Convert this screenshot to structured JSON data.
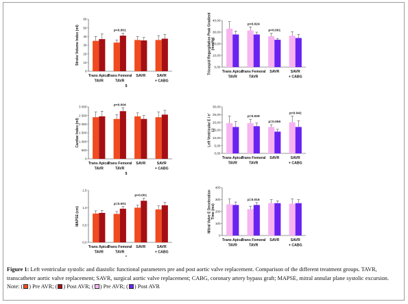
{
  "colors": {
    "pre_systolic": "#f04b1e",
    "post_systolic": "#a50f14",
    "pre_diastolic": "#f7b4f0",
    "post_diastolic": "#6a22f0"
  },
  "chart_data": [
    {
      "type": "bar",
      "id": "stroke-volume",
      "ylabel": "Stroke Volume Index (ml)",
      "ylim": [
        0,
        60
      ],
      "yticks": [
        "0",
        "10",
        "20",
        "30",
        "40",
        "50",
        "60"
      ],
      "categories": [
        "Trans Apical TAVR",
        "Trans Femoral TAVR",
        "SAVR",
        "SAVR + CABG"
      ],
      "series": [
        {
          "values": [
            35,
            33,
            36,
            36
          ],
          "errors": [
            5,
            3,
            4,
            5
          ]
        },
        {
          "values": [
            37,
            41,
            35.5,
            37.5
          ],
          "errors": [
            6,
            3,
            3.5,
            5
          ]
        }
      ],
      "annotations": [
        {
          "category": 1,
          "text": "p<0.001"
        }
      ],
      "marker": "$"
    },
    {
      "type": "bar",
      "id": "tricuspid-gradient",
      "ylabel": "Tricuspid Regurgitation Peak Gradient (mmHg)",
      "ylim": [
        0,
        40
      ],
      "yticks": [
        "0,00",
        "10,00",
        "20,00",
        "30,00",
        "40,00"
      ],
      "categories": [
        "Trans Apical TAVR",
        "Trans Femoral TAVR",
        "SAVR",
        "SAVR + CABG"
      ],
      "series": [
        {
          "values": [
            33,
            31.5,
            26.5,
            27
          ],
          "errors": [
            6,
            3,
            2.5,
            3.5
          ]
        },
        {
          "values": [
            28,
            28,
            23.5,
            25
          ],
          "errors": [
            3,
            2,
            1,
            3
          ]
        }
      ],
      "annotations": [
        {
          "category": 1,
          "text": "p=0.024"
        },
        {
          "category": 2,
          "text": "p=0.001"
        }
      ],
      "marker": ""
    },
    {
      "type": "bar",
      "id": "cardiac-index",
      "ylabel": "Cardiac Index (ml)",
      "ylim": [
        0,
        3000
      ],
      "yticks": [
        "0",
        "500",
        "1 000",
        "1 500",
        "2 000",
        "2 500",
        "3 000"
      ],
      "categories": [
        "Trans Apical TAVR",
        "Trans Femoral TAVR",
        "SAVR",
        "SAVR + CABG"
      ],
      "series": [
        {
          "values": [
            2400,
            2300,
            2450,
            2400
          ],
          "errors": [
            300,
            250,
            200,
            300
          ]
        },
        {
          "values": [
            2450,
            2750,
            2300,
            2550
          ],
          "errors": [
            300,
            200,
            200,
            250
          ]
        }
      ],
      "annotations": [
        {
          "category": 1,
          "text": "p=0.004"
        }
      ],
      "marker": "$"
    },
    {
      "type": "bar",
      "id": "lv-e-e",
      "ylabel": "Left Ventricular E / e’ ( )",
      "ylim": [
        0,
        30
      ],
      "yticks": [
        "0,00",
        "5,00",
        "10,00",
        "15,00",
        "20,00",
        "25,00",
        "30,00"
      ],
      "categories": [
        "Trans Apical TAVR",
        "Trans Femoral TAVR",
        "SAVR",
        "SAVR + CABG"
      ],
      "series": [
        {
          "values": [
            19.5,
            19.5,
            17,
            20
          ],
          "errors": [
            4.5,
            2.5,
            1.5,
            4
          ]
        },
        {
          "values": [
            17,
            17.5,
            14,
            17
          ],
          "errors": [
            3.5,
            2,
            1.5,
            4
          ]
        }
      ],
      "annotations": [
        {
          "category": 1,
          "text": "p=0.029"
        },
        {
          "category": 2,
          "text": "p=0.006"
        },
        {
          "category": 3,
          "text": "p=0.042"
        }
      ],
      "marker": ""
    },
    {
      "type": "bar",
      "id": "mapse",
      "ylabel": "MAPSE (cm)",
      "ylim": [
        0,
        1.5
      ],
      "yticks": [
        "0,0",
        "0,5",
        "1,0",
        "1,5"
      ],
      "categories": [
        "Trans Apical TAVR",
        "Trans Femoral TAVR",
        "SAVR",
        "SAVR + CABG"
      ],
      "series": [
        {
          "values": [
            0.83,
            0.82,
            1.0,
            0.95
          ],
          "errors": [
            0.08,
            0.07,
            0.07,
            0.1
          ]
        },
        {
          "values": [
            0.85,
            0.97,
            1.2,
            1.07
          ],
          "errors": [
            0.07,
            0.06,
            0.07,
            0.08
          ]
        }
      ],
      "annotations": [
        {
          "category": 1,
          "text": "p=0.001"
        },
        {
          "category": 2,
          "text": "p=0.001"
        }
      ],
      "marker": "*"
    },
    {
      "type": "bar",
      "id": "mitral-decel",
      "ylabel": "Mitral Valve E Deceleration Time (ms)",
      "ylim": [
        0,
        400
      ],
      "yticks": [
        "0",
        "100",
        "200",
        "300",
        "400"
      ],
      "categories": [
        "Trans Apical TAVR",
        "Trans Femoral TAVR",
        "SAVR",
        "SAVR + CABG"
      ],
      "series": [
        {
          "values": [
            260,
            220,
            270,
            265
          ],
          "errors": [
            45,
            25,
            30,
            40
          ]
        },
        {
          "values": [
            255,
            255,
            270,
            270
          ],
          "errors": [
            25,
            20,
            20,
            30
          ]
        }
      ],
      "annotations": [
        {
          "category": 1,
          "text": "p=0.016"
        }
      ],
      "marker": ""
    }
  ],
  "caption": {
    "label": "Figure 1:",
    "text": " Left ventricular systolic and diastolic functional parameters pre and post aortic valve replacement. Comparison of the different treatment groups. TAVR, transcatheter aortic valve replacement; SAVR, surgical aortic valve replacement; CABG, coronary artery bypass graft; MAPSE, mitral annular plane systolic excursion. Note:",
    "legend": [
      {
        "open": " (",
        "close": ") Pre AVR;"
      },
      {
        "open": " (",
        "close": ") Post AVR;"
      },
      {
        "open": " (",
        "close": ") Pre AVR;"
      },
      {
        "open": " (",
        "close": ") Post AVR"
      }
    ]
  }
}
